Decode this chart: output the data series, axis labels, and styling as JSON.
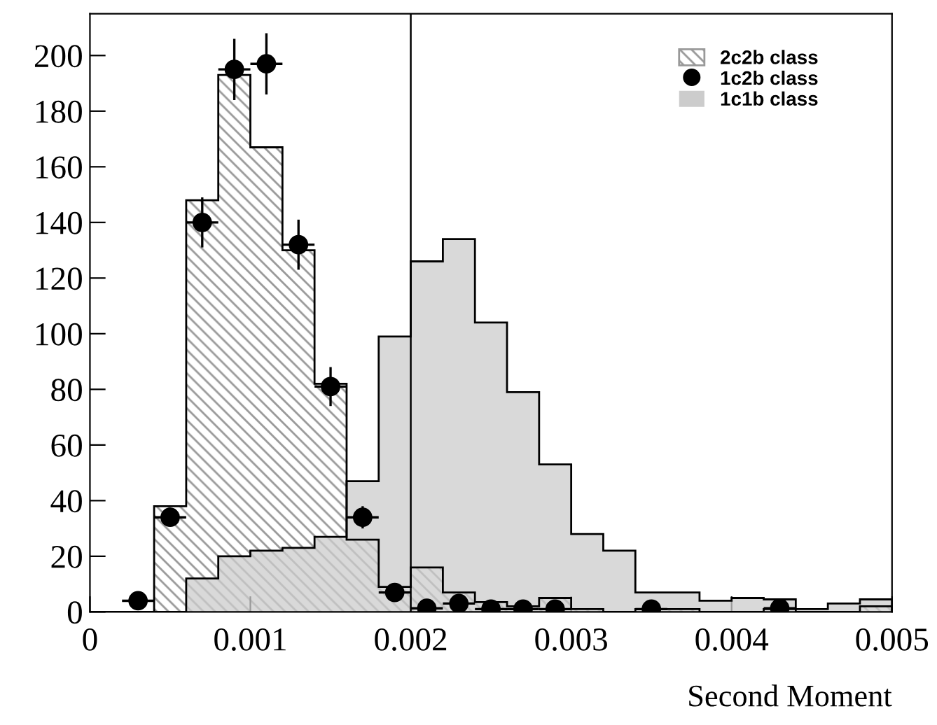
{
  "chart_data": {
    "type": "histogram",
    "xlabel": "Second Moment",
    "bins": [
      0,
      0.0002,
      0.0004,
      0.0006,
      0.0008,
      0.001,
      0.0012,
      0.0014,
      0.0016,
      0.0018,
      0.002,
      0.0022,
      0.0024,
      0.0026,
      0.0028,
      0.003,
      0.0032,
      0.0034,
      0.0036,
      0.0038,
      0.004,
      0.0042,
      0.0044,
      0.0046,
      0.0048,
      0.005
    ],
    "series": [
      {
        "name": "2c2b class",
        "color": "#999999",
        "values": [
          0,
          0,
          38,
          148,
          193,
          167,
          130,
          82,
          26,
          9,
          16,
          7,
          3.5,
          2,
          5,
          1,
          0,
          1,
          1,
          0,
          0,
          1,
          0,
          0,
          2
        ]
      },
      {
        "name": "1c2b class",
        "type": "scatter",
        "color": "#000000",
        "x": [
          0.0003,
          0.0005,
          0.0007,
          0.0009,
          0.0011,
          0.0013,
          0.0015,
          0.0017,
          0.0019,
          0.0021,
          0.0023,
          0.0025,
          0.0027,
          0.0029,
          0.0035,
          0.0043
        ],
        "values": [
          4,
          34,
          140,
          195,
          197,
          132,
          81,
          34,
          7,
          1.3,
          3,
          1,
          1,
          1,
          1,
          1.3
        ],
        "errors": [
          null,
          3,
          9,
          11,
          11,
          9,
          7,
          4,
          null,
          null,
          null,
          null,
          null,
          null,
          null,
          null
        ],
        "xerrors": [
          0.0001,
          0.0001,
          0.0001,
          0.0001,
          0.0001,
          0.0001,
          0.0001,
          0.0001,
          0.0001,
          0.0001,
          0.0001,
          0.0001,
          0.0001,
          0.0001,
          0.0001,
          0.0001
        ]
      },
      {
        "name": "1c1b class",
        "color": "#cccccc",
        "values": [
          0,
          0,
          0,
          12,
          20,
          22,
          23,
          27,
          47,
          99,
          126,
          134,
          104,
          79,
          53,
          28,
          22,
          7,
          7,
          4,
          5,
          4.5,
          1,
          3,
          4.5
        ]
      }
    ],
    "ref_lines": [
      {
        "axis": "x",
        "value": 0.002,
        "color": "#000000"
      }
    ],
    "xlim": [
      0,
      0.005
    ],
    "xticks": [
      0,
      0.001,
      0.002,
      0.003,
      0.004,
      0.005
    ],
    "ylim": [
      0,
      215
    ],
    "yticks": [
      0,
      20,
      40,
      60,
      80,
      100,
      120,
      140,
      160,
      180,
      200
    ],
    "legend": "top right",
    "marker": "circle",
    "grid": false
  }
}
